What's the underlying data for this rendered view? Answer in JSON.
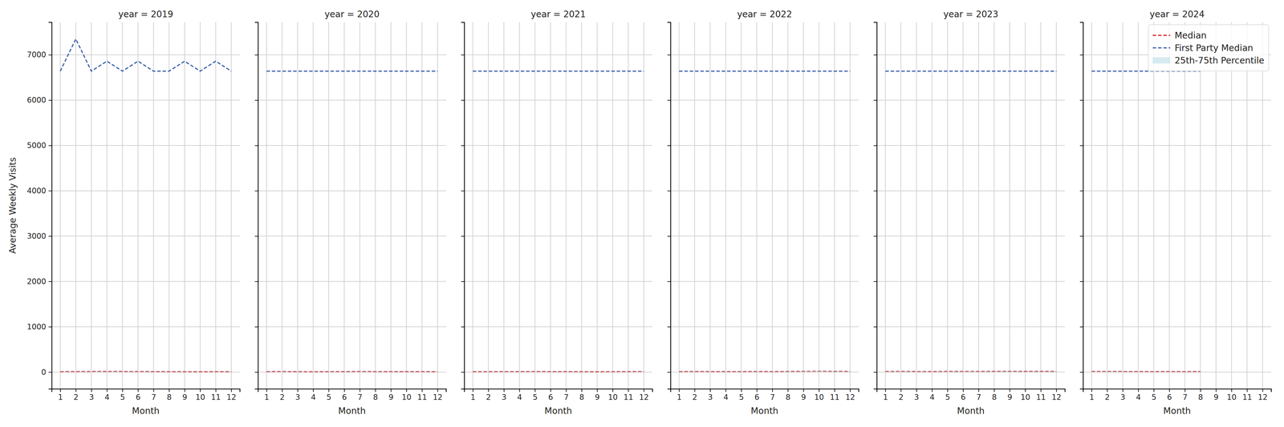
{
  "chart_data": [
    {
      "type": "line",
      "title": "year = 2019",
      "x_label": "Month",
      "y_label": "Average Weekly Visits",
      "x": [
        1,
        2,
        3,
        4,
        5,
        6,
        7,
        8,
        9,
        10,
        11,
        12
      ],
      "xlim": [
        0.45,
        12.55
      ],
      "xticks": [
        1,
        2,
        3,
        4,
        5,
        6,
        7,
        8,
        9,
        10,
        11,
        12
      ],
      "ylim": [
        -370,
        7720
      ],
      "yticks": [
        0,
        1000,
        2000,
        3000,
        4000,
        5000,
        6000,
        7000
      ],
      "grid": true,
      "series": [
        {
          "name": "Median",
          "color": "#d62728",
          "line_style": "dashed",
          "values": [
            10,
            12,
            14,
            15,
            14,
            13,
            12,
            10,
            9,
            8,
            9,
            10
          ]
        },
        {
          "name": "First Party Median",
          "color": "#3a5fab",
          "line_style": "dashed",
          "values": [
            6640,
            7350,
            6640,
            6860,
            6640,
            6860,
            6640,
            6640,
            6860,
            6640,
            6860,
            6640
          ]
        },
        {
          "name": "25th-75th Percentile",
          "type": "area",
          "color": "#add8e6",
          "lower": [
            5,
            6,
            7,
            8,
            7,
            6,
            6,
            5,
            4,
            4,
            4,
            5
          ],
          "values": [
            18,
            20,
            22,
            23,
            22,
            21,
            20,
            18,
            16,
            15,
            16,
            18
          ]
        }
      ]
    },
    {
      "type": "line",
      "title": "year = 2020",
      "x_label": "Month",
      "tick_labels": "x",
      "x": [
        1,
        2,
        3,
        4,
        5,
        6,
        7,
        8,
        9,
        10,
        11,
        12
      ],
      "xlim": [
        0.45,
        12.55
      ],
      "xticks": [
        1,
        2,
        3,
        4,
        5,
        6,
        7,
        8,
        9,
        10,
        11,
        12
      ],
      "ylim": [
        -370,
        7720
      ],
      "yticks": [
        0,
        1000,
        2000,
        3000,
        4000,
        5000,
        6000,
        7000
      ],
      "grid": true,
      "series": [
        {
          "name": "Median",
          "color": "#d62728",
          "line_style": "dashed",
          "values": [
            12,
            13,
            10,
            8,
            10,
            12,
            13,
            12,
            11,
            12,
            11,
            10
          ]
        },
        {
          "name": "First Party Median",
          "color": "#3a5fab",
          "line_style": "dashed",
          "values": [
            6640,
            6640,
            6640,
            6640,
            6640,
            6640,
            6640,
            6640,
            6640,
            6640,
            6640,
            6640
          ]
        },
        {
          "name": "25th-75th Percentile",
          "type": "area",
          "color": "#add8e6",
          "lower": [
            6,
            6,
            5,
            4,
            5,
            6,
            6,
            6,
            5,
            6,
            5,
            5
          ],
          "values": [
            20,
            21,
            18,
            15,
            18,
            20,
            21,
            20,
            19,
            20,
            19,
            18
          ]
        }
      ]
    },
    {
      "type": "line",
      "title": "year = 2021",
      "x_label": "Month",
      "tick_labels": "x",
      "x": [
        1,
        2,
        3,
        4,
        5,
        6,
        7,
        8,
        9,
        10,
        11,
        12
      ],
      "xlim": [
        0.45,
        12.55
      ],
      "xticks": [
        1,
        2,
        3,
        4,
        5,
        6,
        7,
        8,
        9,
        10,
        11,
        12
      ],
      "ylim": [
        -370,
        7720
      ],
      "yticks": [
        0,
        1000,
        2000,
        3000,
        4000,
        5000,
        6000,
        7000
      ],
      "grid": true,
      "series": [
        {
          "name": "Median",
          "color": "#d62728",
          "line_style": "dashed",
          "values": [
            9,
            10,
            11,
            12,
            13,
            12,
            11,
            9,
            8,
            10,
            12,
            13
          ]
        },
        {
          "name": "First Party Median",
          "color": "#3a5fab",
          "line_style": "dashed",
          "values": [
            6640,
            6640,
            6640,
            6640,
            6640,
            6640,
            6640,
            6640,
            6640,
            6640,
            6640,
            6640
          ]
        },
        {
          "name": "25th-75th Percentile",
          "type": "area",
          "color": "#add8e6",
          "lower": [
            4,
            5,
            5,
            6,
            6,
            6,
            5,
            4,
            4,
            5,
            6,
            6
          ],
          "values": [
            17,
            18,
            19,
            20,
            21,
            20,
            19,
            17,
            15,
            18,
            20,
            21
          ]
        }
      ]
    },
    {
      "type": "line",
      "title": "year = 2022",
      "x_label": "Month",
      "tick_labels": "x",
      "x": [
        1,
        2,
        3,
        4,
        5,
        6,
        7,
        8,
        9,
        10,
        11,
        12
      ],
      "xlim": [
        0.45,
        12.55
      ],
      "xticks": [
        1,
        2,
        3,
        4,
        5,
        6,
        7,
        8,
        9,
        10,
        11,
        12
      ],
      "ylim": [
        -370,
        7720
      ],
      "yticks": [
        0,
        1000,
        2000,
        3000,
        4000,
        5000,
        6000,
        7000
      ],
      "grid": true,
      "series": [
        {
          "name": "Median",
          "color": "#d62728",
          "line_style": "dashed",
          "values": [
            12,
            13,
            12,
            11,
            12,
            13,
            12,
            14,
            18,
            20,
            17,
            15
          ]
        },
        {
          "name": "First Party Median",
          "color": "#3a5fab",
          "line_style": "dashed",
          "values": [
            6640,
            6640,
            6640,
            6640,
            6640,
            6640,
            6640,
            6640,
            6640,
            6640,
            6640,
            6640
          ]
        },
        {
          "name": "25th-75th Percentile",
          "type": "area",
          "color": "#add8e6",
          "lower": [
            6,
            6,
            6,
            5,
            6,
            6,
            6,
            7,
            9,
            10,
            8,
            7
          ],
          "values": [
            20,
            21,
            20,
            19,
            20,
            21,
            20,
            23,
            28,
            30,
            27,
            24
          ]
        }
      ]
    },
    {
      "type": "line",
      "title": "year = 2023",
      "x_label": "Month",
      "tick_labels": "x",
      "x": [
        1,
        2,
        3,
        4,
        5,
        6,
        7,
        8,
        9,
        10,
        11,
        12
      ],
      "xlim": [
        0.45,
        12.55
      ],
      "xticks": [
        1,
        2,
        3,
        4,
        5,
        6,
        7,
        8,
        9,
        10,
        11,
        12
      ],
      "ylim": [
        -370,
        7720
      ],
      "yticks": [
        0,
        1000,
        2000,
        3000,
        4000,
        5000,
        6000,
        7000
      ],
      "grid": true,
      "series": [
        {
          "name": "Median",
          "color": "#d62728",
          "line_style": "dashed",
          "values": [
            15,
            16,
            14,
            13,
            16,
            15,
            14,
            17,
            18,
            16,
            17,
            15
          ]
        },
        {
          "name": "First Party Median",
          "color": "#3a5fab",
          "line_style": "dashed",
          "values": [
            6640,
            6640,
            6640,
            6640,
            6640,
            6640,
            6640,
            6640,
            6640,
            6640,
            6640,
            6640
          ]
        },
        {
          "name": "25th-75th Percentile",
          "type": "area",
          "color": "#add8e6",
          "lower": [
            7,
            8,
            7,
            6,
            8,
            7,
            7,
            8,
            9,
            8,
            8,
            7
          ],
          "values": [
            24,
            25,
            23,
            22,
            25,
            24,
            23,
            26,
            28,
            25,
            26,
            24
          ]
        }
      ]
    },
    {
      "type": "line",
      "title": "year = 2024",
      "x_label": "Month",
      "tick_labels": "x",
      "legend": "upper right",
      "x": [
        1,
        2,
        3,
        4,
        5,
        6,
        7,
        8
      ],
      "xlim": [
        0.45,
        12.55
      ],
      "xticks": [
        1,
        2,
        3,
        4,
        5,
        6,
        7,
        8,
        9,
        10,
        11,
        12
      ],
      "ylim": [
        -370,
        7720
      ],
      "yticks": [
        0,
        1000,
        2000,
        3000,
        4000,
        5000,
        6000,
        7000
      ],
      "grid": true,
      "series": [
        {
          "name": "Median",
          "color": "#d62728",
          "line_style": "dashed",
          "values": [
            14,
            15,
            14,
            13,
            12,
            13,
            12,
            13
          ]
        },
        {
          "name": "First Party Median",
          "color": "#3a5fab",
          "line_style": "dashed",
          "values": [
            6640,
            6640,
            6640,
            6640,
            6640,
            6640,
            6640,
            6640
          ]
        },
        {
          "name": "25th-75th Percentile",
          "type": "area",
          "color": "#add8e6",
          "lower": [
            7,
            7,
            7,
            6,
            6,
            6,
            6,
            6
          ],
          "values": [
            23,
            24,
            23,
            22,
            21,
            22,
            21,
            22
          ]
        }
      ]
    }
  ]
}
